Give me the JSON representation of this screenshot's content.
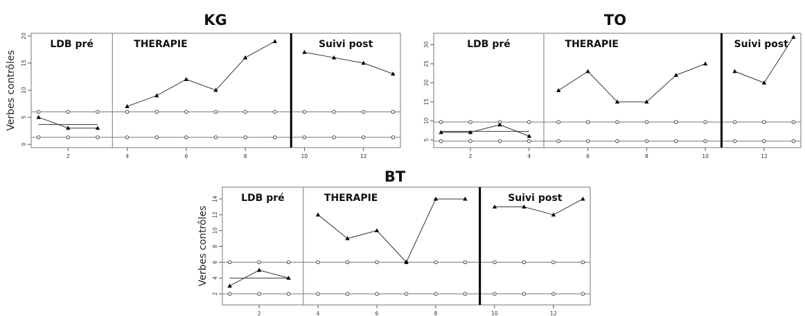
{
  "chart_data": [
    {
      "type": "line",
      "title": "KG",
      "ylabel": "Verbes contrôles",
      "xlim": [
        0.75,
        13.25
      ],
      "ylim": [
        -0.6,
        20.5
      ],
      "xticks": [
        2,
        4,
        6,
        8,
        10,
        12
      ],
      "yticks": [
        0,
        5,
        10,
        15,
        20
      ],
      "phases": [
        "LDB pré",
        "THERAPIE",
        "Suivi post"
      ],
      "phase_boundaries": [
        3.5,
        9.55
      ],
      "series": [
        {
          "values": [
            [
              1,
              5
            ],
            [
              2,
              3
            ],
            [
              3,
              3
            ],
            [
              4,
              7
            ],
            [
              5,
              9
            ],
            [
              6,
              12
            ],
            [
              7,
              10
            ],
            [
              8,
              16
            ],
            [
              9,
              19
            ],
            [
              10,
              17
            ],
            [
              11,
              16
            ],
            [
              12,
              15
            ],
            [
              13,
              13
            ]
          ]
        }
      ],
      "baseline_mean": {
        "y": 3.67,
        "x_range": [
          1,
          3
        ]
      },
      "reference_lines": [
        6,
        1.3
      ]
    },
    {
      "type": "line",
      "title": "TO",
      "ylabel": "",
      "xlim": [
        0.75,
        13.25
      ],
      "ylim": [
        3,
        33
      ],
      "xticks": [
        2,
        4,
        6,
        8,
        10,
        12
      ],
      "yticks": [
        5,
        10,
        15,
        20,
        25,
        30
      ],
      "phases": [
        "LDB pré",
        "THERAPIE",
        "Suivi post"
      ],
      "phase_boundaries": [
        4.5,
        10.55
      ],
      "series": [
        {
          "values": [
            [
              1,
              7
            ],
            [
              2,
              7
            ],
            [
              3,
              9
            ],
            [
              4,
              6
            ],
            [
              5,
              18
            ],
            [
              6,
              23
            ],
            [
              7,
              15
            ],
            [
              8,
              15
            ],
            [
              9,
              22
            ],
            [
              10,
              25
            ],
            [
              11,
              23
            ],
            [
              12,
              20
            ],
            [
              13,
              32
            ]
          ]
        }
      ],
      "baseline_mean": {
        "y": 7.25,
        "x_range": [
          1,
          4
        ]
      },
      "reference_lines": [
        9.7,
        4.7
      ]
    },
    {
      "type": "line",
      "title": "BT",
      "ylabel": "Verbes contrôles",
      "xlim": [
        0.75,
        13.25
      ],
      "ylim": [
        0.6,
        15.5
      ],
      "xticks": [
        2,
        4,
        6,
        8,
        10,
        12
      ],
      "yticks": [
        2,
        4,
        6,
        8,
        10,
        12,
        14
      ],
      "phases": [
        "LDB pré",
        "THERAPIE",
        "Suivi post"
      ],
      "phase_boundaries": [
        3.5,
        9.5
      ],
      "series": [
        {
          "values": [
            [
              1,
              3
            ],
            [
              2,
              5
            ],
            [
              3,
              4
            ],
            [
              4,
              12
            ],
            [
              5,
              9
            ],
            [
              6,
              10
            ],
            [
              7,
              6
            ],
            [
              8,
              14
            ],
            [
              9,
              14
            ],
            [
              10,
              13
            ],
            [
              11,
              13
            ],
            [
              12,
              12
            ],
            [
              13,
              14
            ]
          ]
        }
      ],
      "baseline_mean": {
        "y": 4,
        "x_range": [
          1,
          3
        ]
      },
      "reference_lines": [
        6,
        2
      ]
    }
  ]
}
